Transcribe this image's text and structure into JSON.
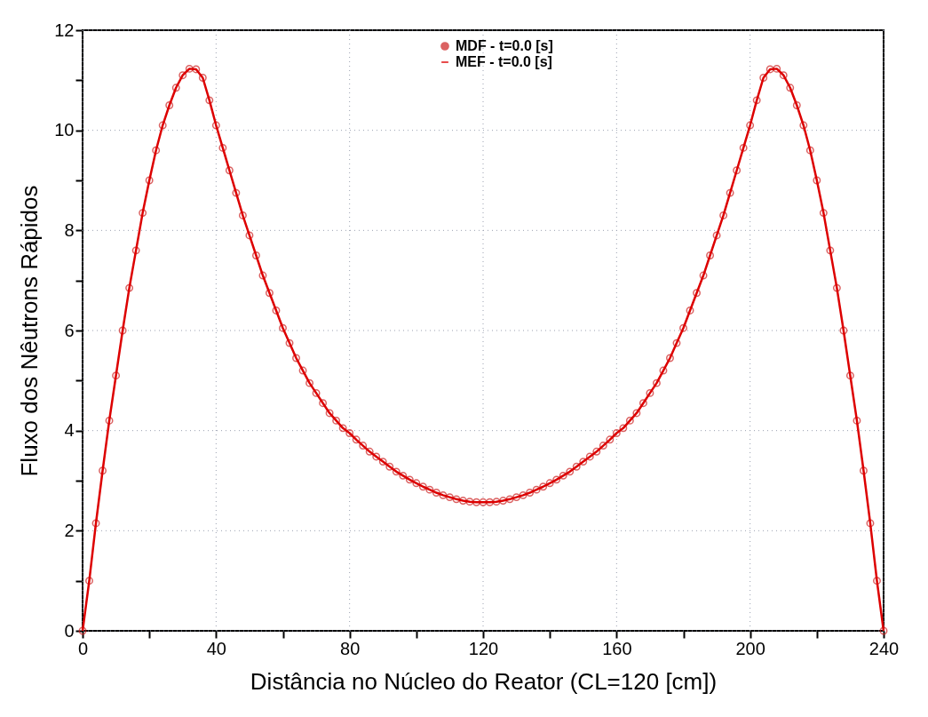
{
  "chart_data": {
    "type": "line",
    "xlabel": "Distância no Núcleo do Reator (CL=120 [cm])",
    "ylabel": "Fluxo dos Nêutrons Rápidos",
    "x": [
      0,
      2,
      4,
      6,
      8,
      10,
      12,
      14,
      16,
      18,
      20,
      22,
      24,
      26,
      28,
      30,
      32,
      34,
      36,
      38,
      40,
      42,
      44,
      46,
      48,
      50,
      52,
      54,
      56,
      58,
      60,
      62,
      64,
      66,
      68,
      70,
      72,
      74,
      76,
      78,
      80,
      82,
      84,
      86,
      88,
      90,
      92,
      94,
      96,
      98,
      100,
      102,
      104,
      106,
      108,
      110,
      112,
      114,
      116,
      118,
      120,
      122,
      124,
      126,
      128,
      130,
      132,
      134,
      136,
      138,
      140,
      142,
      144,
      146,
      148,
      150,
      152,
      154,
      156,
      158,
      160,
      162,
      164,
      166,
      168,
      170,
      172,
      174,
      176,
      178,
      180,
      182,
      184,
      186,
      188,
      190,
      192,
      194,
      196,
      198,
      200,
      202,
      204,
      206,
      208,
      210,
      212,
      214,
      216,
      218,
      220,
      222,
      224,
      226,
      228,
      230,
      232,
      234,
      236,
      238,
      240
    ],
    "series": [
      {
        "name": "MDF - t=0.0 [s]",
        "type": "scatter",
        "marker": "circle",
        "color": "#cc2020",
        "values": [
          0,
          1.0,
          2.15,
          3.2,
          4.2,
          5.1,
          6.0,
          6.85,
          7.6,
          8.35,
          9.0,
          9.6,
          10.1,
          10.5,
          10.85,
          11.1,
          11.23,
          11.22,
          11.05,
          10.6,
          10.1,
          9.65,
          9.2,
          8.75,
          8.3,
          7.9,
          7.5,
          7.1,
          6.75,
          6.4,
          6.05,
          5.75,
          5.45,
          5.2,
          4.95,
          4.75,
          4.55,
          4.35,
          4.2,
          4.05,
          3.95,
          3.82,
          3.7,
          3.58,
          3.48,
          3.38,
          3.28,
          3.18,
          3.1,
          3.02,
          2.95,
          2.88,
          2.82,
          2.76,
          2.71,
          2.67,
          2.63,
          2.6,
          2.58,
          2.57,
          2.57,
          2.57,
          2.58,
          2.6,
          2.63,
          2.67,
          2.71,
          2.76,
          2.82,
          2.88,
          2.95,
          3.02,
          3.1,
          3.18,
          3.28,
          3.38,
          3.48,
          3.58,
          3.7,
          3.82,
          3.95,
          4.05,
          4.2,
          4.35,
          4.55,
          4.75,
          4.95,
          5.2,
          5.45,
          5.75,
          6.05,
          6.4,
          6.75,
          7.1,
          7.5,
          7.9,
          8.3,
          8.75,
          9.2,
          9.65,
          10.1,
          10.6,
          11.05,
          11.22,
          11.23,
          11.1,
          10.85,
          10.5,
          10.1,
          9.6,
          9.0,
          8.35,
          7.6,
          6.85,
          6.0,
          5.1,
          4.2,
          3.2,
          2.15,
          1.0,
          0
        ]
      },
      {
        "name": "MEF - t=0.0 [s]",
        "type": "line",
        "color": "#dd0000",
        "values": [
          0,
          1.0,
          2.15,
          3.2,
          4.2,
          5.1,
          6.0,
          6.85,
          7.6,
          8.35,
          9.0,
          9.6,
          10.1,
          10.5,
          10.85,
          11.1,
          11.23,
          11.22,
          11.05,
          10.6,
          10.1,
          9.65,
          9.2,
          8.75,
          8.3,
          7.9,
          7.5,
          7.1,
          6.75,
          6.4,
          6.05,
          5.75,
          5.45,
          5.2,
          4.95,
          4.75,
          4.55,
          4.35,
          4.2,
          4.05,
          3.95,
          3.82,
          3.7,
          3.58,
          3.48,
          3.38,
          3.28,
          3.18,
          3.1,
          3.02,
          2.95,
          2.88,
          2.82,
          2.76,
          2.71,
          2.67,
          2.63,
          2.6,
          2.58,
          2.57,
          2.57,
          2.57,
          2.58,
          2.6,
          2.63,
          2.67,
          2.71,
          2.76,
          2.82,
          2.88,
          2.95,
          3.02,
          3.1,
          3.18,
          3.28,
          3.38,
          3.48,
          3.58,
          3.7,
          3.82,
          3.95,
          4.05,
          4.2,
          4.35,
          4.55,
          4.75,
          4.95,
          5.2,
          5.45,
          5.75,
          6.05,
          6.4,
          6.75,
          7.1,
          7.5,
          7.9,
          8.3,
          8.75,
          9.2,
          9.65,
          10.1,
          10.6,
          11.05,
          11.22,
          11.23,
          11.1,
          10.85,
          10.5,
          10.1,
          9.6,
          9.0,
          8.35,
          7.6,
          6.85,
          6.0,
          5.1,
          4.2,
          3.2,
          2.15,
          1.0,
          0
        ]
      }
    ],
    "xlim": [
      0,
      240
    ],
    "xticks": [
      0,
      {
        "value": 20,
        "label": null
      },
      40,
      {
        "value": 60,
        "label": null
      },
      80,
      {
        "value": 100,
        "label": null
      },
      120,
      {
        "value": 140,
        "label": null
      },
      160,
      {
        "value": 180,
        "label": null
      },
      200,
      {
        "value": 220,
        "label": null
      },
      240
    ],
    "ylim": [
      0,
      12
    ],
    "yticks": [
      0,
      {
        "value": 1,
        "label": null
      },
      2,
      {
        "value": 3,
        "label": null
      },
      4,
      {
        "value": 5,
        "label": null
      },
      6,
      {
        "value": 7,
        "label": null
      },
      8,
      {
        "value": 9,
        "label": null
      },
      10,
      {
        "value": 11,
        "label": null
      },
      12
    ],
    "grid": true,
    "legend": "top"
  }
}
